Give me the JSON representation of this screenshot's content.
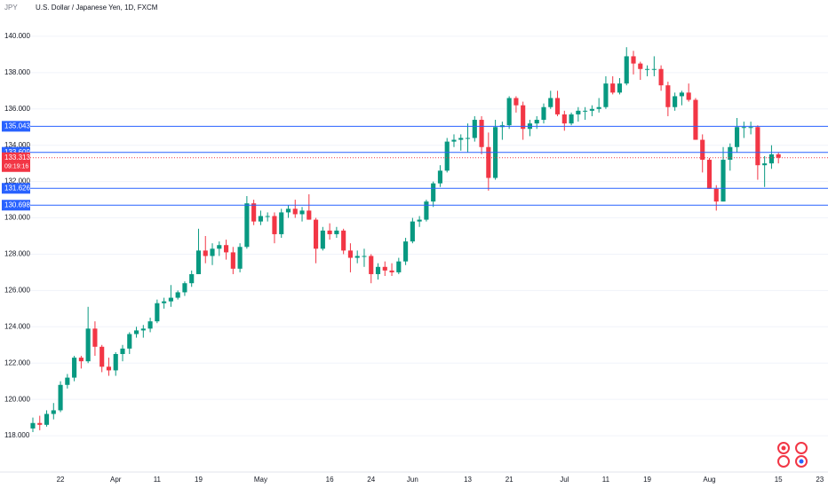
{
  "chart_data": {
    "type": "candlestick",
    "symbol_label": "JPY",
    "title": "U.S. Dollar / Japanese Yen, 1D, FXCM",
    "categories": [
      null,
      null,
      null,
      null,
      "22",
      null,
      null,
      null,
      null,
      null,
      null,
      null,
      "Apr",
      null,
      null,
      null,
      null,
      null,
      "11",
      null,
      null,
      null,
      null,
      null,
      "19",
      null,
      null,
      null,
      null,
      null,
      null,
      null,
      null,
      "May",
      null,
      null,
      null,
      null,
      null,
      null,
      null,
      null,
      null,
      "16",
      null,
      null,
      null,
      null,
      null,
      "24",
      null,
      null,
      null,
      null,
      null,
      "Jun",
      null,
      null,
      null,
      null,
      null,
      null,
      null,
      "13",
      null,
      null,
      null,
      null,
      null,
      "21",
      null,
      null,
      null,
      null,
      null,
      null,
      null,
      "Jul",
      null,
      null,
      null,
      null,
      null,
      "11",
      null,
      null,
      null,
      null,
      null,
      "19",
      null,
      null,
      null,
      null,
      null,
      null,
      null,
      null,
      "Aug",
      null,
      null,
      null,
      null,
      null,
      null,
      null,
      null,
      null,
      "15",
      null,
      null,
      null,
      null,
      null,
      "23"
    ],
    "open": [
      118.4,
      118.7,
      118.6,
      119.2,
      119.4,
      120.8,
      121.2,
      122.3,
      122.1,
      123.9,
      122.9,
      121.8,
      121.6,
      122.5,
      122.8,
      123.6,
      123.8,
      123.9,
      124.3,
      125.3,
      125.4,
      125.6,
      125.9,
      126.4,
      126.9,
      128.2,
      127.9,
      128.3,
      128.5,
      128.1,
      127.2,
      128.4,
      130.8,
      129.8,
      130.1,
      130.1,
      129.1,
      130.3,
      130.5,
      130.2,
      130.4,
      129.9,
      128.3,
      129.3,
      129.1,
      129.3,
      128.2,
      127.8,
      127.9,
      127.9,
      126.9,
      127.3,
      127.1,
      127.0,
      127.6,
      128.7,
      129.8,
      129.9,
      130.9,
      131.9,
      132.6,
      134.2,
      134.3,
      134.4,
      134.4,
      135.4,
      133.9,
      132.2,
      135.0,
      135.1,
      136.6,
      136.2,
      134.9,
      135.2,
      135.4,
      136.1,
      136.6,
      135.7,
      135.2,
      135.7,
      135.9,
      135.9,
      136.0,
      136.1,
      137.4,
      136.9,
      137.4,
      138.9,
      138.5,
      138.2,
      138.2,
      138.2,
      137.3,
      136.1,
      136.7,
      136.9,
      136.5,
      134.3,
      133.2,
      131.6,
      130.9,
      133.2,
      133.9,
      135.0,
      135.0,
      135.0,
      132.9,
      133.0,
      133.5,
      null,
      null,
      null,
      null,
      null,
      null
    ],
    "high": [
      119.0,
      119.1,
      119.4,
      119.8,
      121.0,
      121.4,
      122.4,
      122.4,
      125.1,
      124.3,
      123.0,
      122.3,
      122.6,
      123.0,
      123.7,
      124.0,
      124.1,
      124.5,
      125.5,
      125.6,
      126.3,
      126.0,
      126.5,
      127.1,
      129.4,
      129.0,
      128.6,
      128.7,
      128.8,
      128.4,
      128.6,
      131.2,
      131.0,
      130.4,
      130.3,
      130.3,
      130.5,
      130.7,
      131.0,
      130.6,
      131.3,
      130.0,
      129.5,
      129.7,
      129.5,
      129.4,
      128.6,
      128.2,
      128.3,
      128.0,
      127.5,
      127.6,
      127.5,
      127.8,
      128.9,
      130.0,
      130.1,
      131.0,
      132.0,
      132.9,
      134.4,
      134.6,
      134.6,
      135.2,
      135.6,
      135.6,
      134.7,
      135.4,
      135.3,
      136.7,
      136.7,
      136.4,
      135.4,
      135.6,
      136.3,
      137.0,
      137.0,
      135.9,
      135.8,
      136.1,
      136.1,
      136.2,
      136.6,
      137.8,
      137.8,
      137.7,
      139.4,
      139.2,
      138.6,
      138.4,
      138.9,
      138.4,
      137.5,
      136.9,
      137.0,
      137.4,
      136.6,
      134.6,
      133.3,
      131.8,
      133.9,
      134.1,
      135.5,
      135.3,
      135.3,
      135.1,
      133.4,
      134.0,
      133.6,
      null,
      null,
      null,
      null,
      null,
      null
    ],
    "low": [
      118.2,
      118.3,
      118.5,
      118.9,
      119.3,
      120.6,
      121.0,
      121.7,
      122.0,
      122.4,
      121.5,
      121.3,
      121.3,
      122.1,
      122.5,
      123.4,
      123.4,
      123.7,
      124.2,
      125.0,
      125.1,
      125.5,
      125.7,
      126.2,
      126.9,
      127.5,
      127.4,
      127.9,
      127.7,
      126.9,
      127.0,
      128.3,
      129.6,
      129.6,
      129.8,
      128.6,
      128.9,
      130.0,
      130.0,
      129.8,
      129.9,
      127.5,
      128.2,
      128.8,
      128.9,
      128.0,
      127.0,
      127.5,
      127.3,
      126.4,
      126.6,
      126.8,
      126.8,
      126.9,
      127.4,
      128.6,
      129.5,
      129.8,
      130.6,
      131.7,
      132.5,
      133.9,
      133.7,
      133.6,
      134.2,
      133.5,
      131.5,
      132.1,
      134.3,
      134.9,
      135.8,
      134.3,
      134.5,
      134.9,
      135.2,
      136.0,
      135.6,
      134.8,
      135.1,
      135.3,
      135.4,
      135.6,
      135.8,
      136.0,
      136.8,
      136.8,
      137.3,
      137.9,
      137.6,
      137.8,
      137.8,
      137.0,
      135.6,
      135.9,
      136.2,
      136.4,
      134.3,
      132.5,
      131.6,
      130.4,
      130.9,
      132.6,
      133.6,
      134.4,
      134.6,
      132.1,
      131.7,
      132.7,
      133.0,
      null,
      null,
      null,
      null,
      null,
      null
    ],
    "close": [
      118.7,
      118.6,
      119.2,
      119.4,
      120.8,
      121.2,
      122.3,
      122.1,
      123.9,
      122.9,
      121.8,
      121.6,
      122.5,
      122.8,
      123.6,
      123.8,
      123.9,
      124.3,
      125.3,
      125.4,
      125.6,
      125.9,
      126.4,
      126.9,
      128.2,
      127.9,
      128.3,
      128.5,
      128.1,
      127.2,
      128.4,
      130.8,
      129.8,
      130.1,
      130.1,
      129.1,
      130.3,
      130.5,
      130.2,
      130.4,
      129.9,
      128.3,
      129.3,
      129.1,
      129.3,
      128.2,
      127.8,
      127.9,
      127.9,
      126.9,
      127.3,
      127.1,
      127.0,
      127.6,
      128.7,
      129.8,
      129.9,
      130.9,
      131.9,
      132.6,
      134.2,
      134.3,
      134.4,
      134.4,
      135.4,
      133.9,
      132.2,
      135.0,
      135.1,
      136.6,
      136.2,
      134.9,
      135.2,
      135.4,
      136.1,
      136.6,
      135.7,
      135.2,
      135.7,
      135.9,
      135.9,
      136.0,
      136.1,
      137.4,
      136.9,
      137.4,
      138.9,
      138.5,
      138.2,
      138.2,
      138.2,
      137.3,
      136.1,
      136.7,
      136.9,
      136.5,
      134.3,
      133.2,
      131.6,
      130.9,
      133.2,
      133.9,
      135.0,
      135.0,
      135.0,
      132.9,
      133.0,
      133.5,
      133.313,
      null,
      null,
      null,
      null,
      null,
      null
    ],
    "up_color": "#089981",
    "down_color": "#f23645",
    "ylim": [
      116.0,
      142.0
    ],
    "yticks": [
      {
        "value": 118,
        "label": "118.000"
      },
      {
        "value": 120,
        "label": "120.000"
      },
      {
        "value": 122,
        "label": "122.000"
      },
      {
        "value": 124,
        "label": "124.000"
      },
      {
        "value": 126,
        "label": "126.000"
      },
      {
        "value": 128,
        "label": "128.000"
      },
      {
        "value": 130,
        "label": "130.000"
      },
      {
        "value": 132,
        "label": "132.000"
      },
      {
        "value": 134,
        "label": "134.000"
      },
      {
        "value": 136,
        "label": "136.000"
      },
      {
        "value": 138,
        "label": "138.000"
      },
      {
        "value": 140,
        "label": "140.000"
      }
    ],
    "grid": true,
    "levels": [
      135.043,
      133.609,
      131.626,
      130.698
    ],
    "level_color": "#2962ff",
    "last_price": 133.313,
    "countdown": "09:19:16"
  }
}
